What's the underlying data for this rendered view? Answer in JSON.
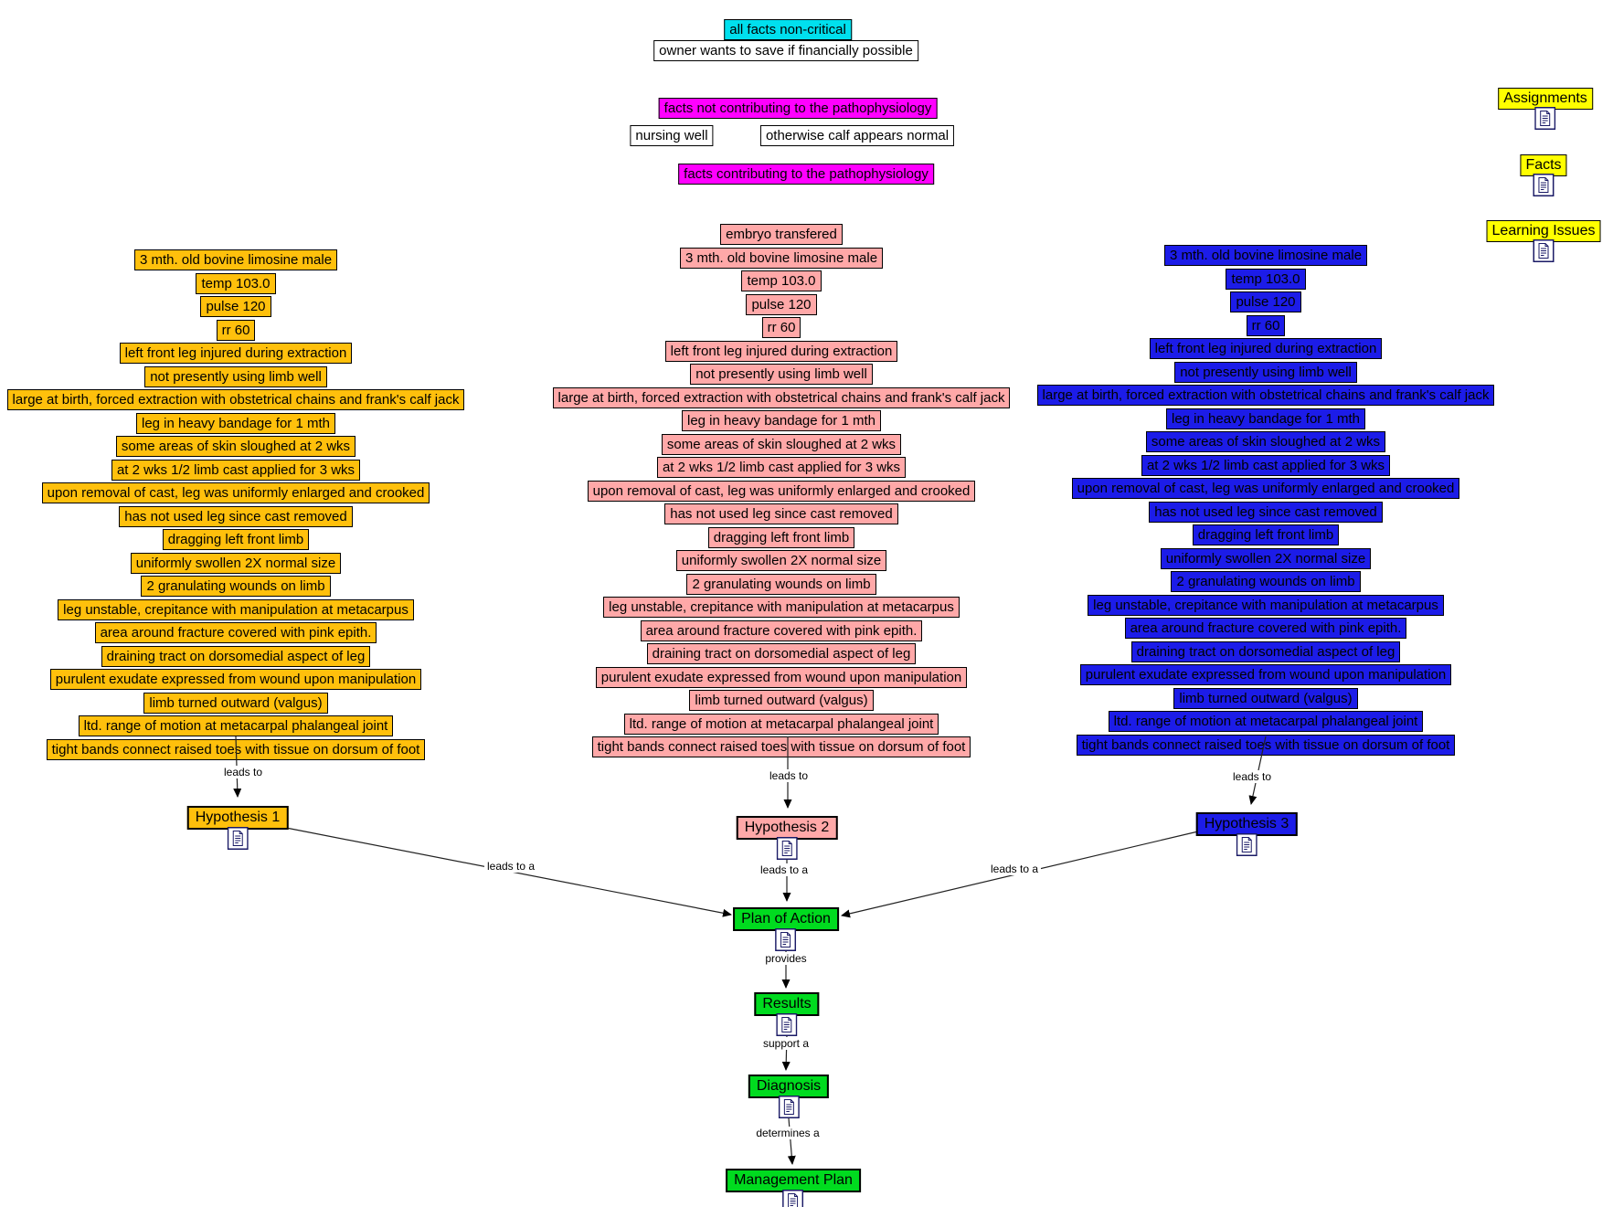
{
  "header": {
    "all_facts_non_critical": "all facts non-critical",
    "owner_note": "owner wants to save if financially possible",
    "facts_not_contributing": "facts not contributing to the pathophysiology",
    "nursing_well": "nursing well",
    "otherwise_normal": "otherwise calf appears normal",
    "facts_contributing": "facts contributing to the pathophysiology"
  },
  "legend": {
    "items": [
      {
        "label": "Assignments"
      },
      {
        "label": "Facts"
      },
      {
        "label": "Learning Issues"
      }
    ]
  },
  "facts": [
    "3 mth. old bovine limosine male",
    "temp 103.0",
    "pulse 120",
    "rr 60",
    "left front leg injured during extraction",
    "not presently using limb well",
    "large at birth, forced extraction with obstetrical chains and frank's calf jack",
    "leg in heavy bandage for 1 mth",
    "some areas of skin sloughed at 2 wks",
    "at 2 wks 1/2 limb cast applied for 3 wks",
    "upon removal of cast, leg was uniformly enlarged and crooked",
    "has not used leg since cast removed",
    "dragging left front limb",
    "uniformly swollen 2X normal size",
    "2 granulating wounds on limb",
    "leg unstable, crepitance with manipulation at metacarpus",
    "area around fracture covered with pink epith.",
    "draining tract on dorsomedial aspect of leg",
    "purulent exudate expressed from wound upon manipulation",
    "limb turned outward (valgus)",
    "ltd. range of motion at metacarpal phalangeal joint",
    "tight bands connect raised toes with tissue on dorsum of foot"
  ],
  "fact_columns": [
    {
      "name": "hypothesis-1-facts",
      "color": "orange",
      "extra_top": null
    },
    {
      "name": "hypothesis-2-facts",
      "color": "pink",
      "extra_top": "embryo transfered"
    },
    {
      "name": "hypothesis-3-facts",
      "color": "blue",
      "extra_top": null
    }
  ],
  "flow": {
    "hypotheses": [
      {
        "label": "Hypothesis 1"
      },
      {
        "label": "Hypothesis 2"
      },
      {
        "label": "Hypothesis 3"
      }
    ],
    "plan_of_action": "Plan of Action",
    "results": "Results",
    "diagnosis": "Diagnosis",
    "management_plan": "Management Plan"
  },
  "connector_labels": {
    "leads_to": "leads to",
    "leads_to_a": "leads to a",
    "provides": "provides",
    "support_a": "support a",
    "determines_a": "determines a"
  },
  "colors": {
    "cyan": "#00E0EE",
    "magenta": "#FF00FF",
    "yellow": "#FFFF00",
    "orange": "#FFC00C",
    "pink": "#FFA8A8",
    "blue": "#1C1CE8",
    "green": "#00DB1F"
  }
}
